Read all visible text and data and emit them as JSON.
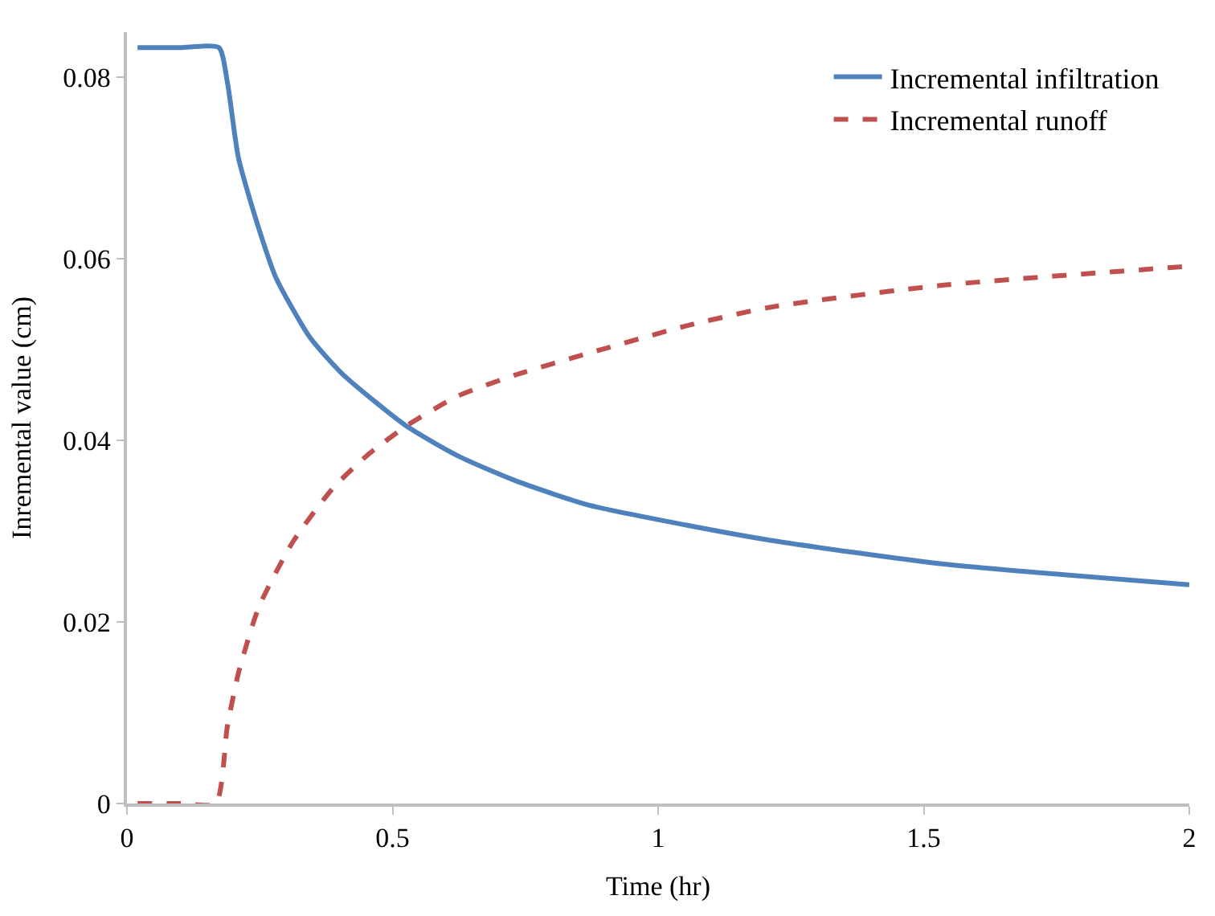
{
  "chart_data": {
    "type": "line",
    "xlabel": "Time (hr)",
    "ylabel": "Inremental value (cm)",
    "xlim": [
      0,
      2
    ],
    "xticks": [
      0,
      0.5,
      1,
      1.5,
      2
    ],
    "ylim": [
      0,
      0.085
    ],
    "yticks": [
      0,
      0.02,
      0.04,
      0.06,
      0.08
    ],
    "legend": "top right",
    "marker": "none",
    "series": [
      {
        "name": "Incremental infiltration",
        "color": "#4f81bd",
        "line_style": "solid",
        "x": [
          0.02,
          0.1,
          0.173,
          0.189,
          0.21,
          0.248,
          0.28,
          0.344,
          0.408,
          0.526,
          0.623,
          0.73,
          0.868,
          1.051,
          1.212,
          1.534,
          2
        ],
        "values": [
          0.0833,
          0.0833,
          0.0833,
          0.0795,
          0.0711,
          0.0634,
          0.058,
          0.0514,
          0.0472,
          0.0416,
          0.0383,
          0.0356,
          0.0329,
          0.0307,
          0.029,
          0.0264,
          0.0241
        ]
      },
      {
        "name": "Incremental runoff",
        "color": "#c0504d",
        "line_style": "dashed",
        "x": [
          0.02,
          0.1,
          0.167,
          0.189,
          0.21,
          0.248,
          0.312,
          0.387,
          0.451,
          0.526,
          0.623,
          0.73,
          0.868,
          1.051,
          1.212,
          1.534,
          2
        ],
        "values": [
          0,
          0,
          0,
          0.0085,
          0.0144,
          0.0216,
          0.0288,
          0.0347,
          0.0383,
          0.0416,
          0.0449,
          0.0472,
          0.0496,
          0.0526,
          0.0547,
          0.0571,
          0.0592
        ]
      }
    ]
  }
}
